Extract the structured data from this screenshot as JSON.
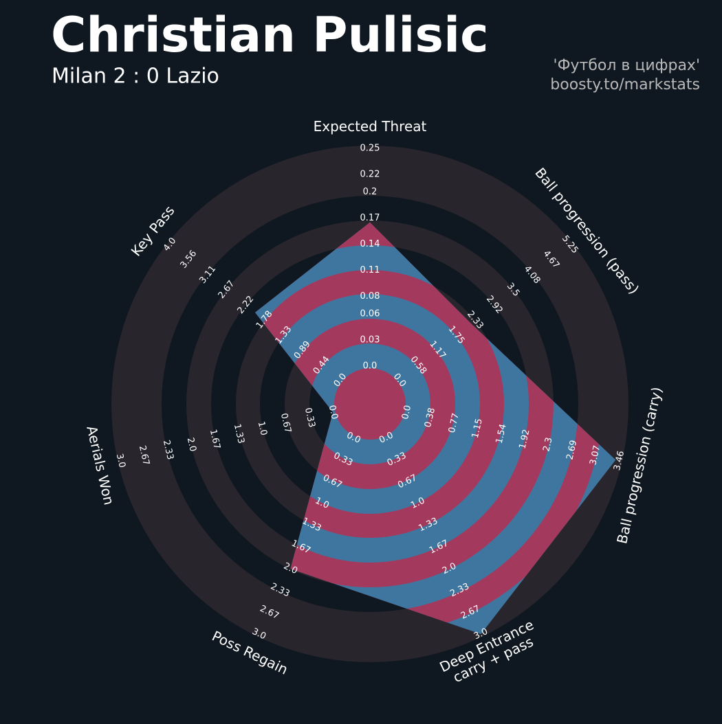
{
  "chart_data": {
    "type": "radar",
    "title": "Christian Pulisic",
    "subtitle": "Milan 2 : 0 Lazio",
    "credits": [
      "'Футбол в цифрах'",
      "boosty.to/markstats"
    ],
    "categories": [
      "Expected Threat",
      "Ball progression (pass)",
      "Ball progression (carry)",
      "Deep Entrance\ncarry + pass",
      "Poss Regain",
      "Aerials Won",
      "Key Pass"
    ],
    "values": [
      0.165,
      2.2,
      3.4,
      3.0,
      2.0,
      0.0,
      2.0
    ],
    "color": "#3f76a0",
    "ring_color": "#a33a5e",
    "background_ring_color": "#28252c",
    "axis_lims": [
      [
        0,
        0.25
      ],
      [
        0,
        5.25
      ],
      [
        0,
        3.46
      ],
      [
        0,
        3
      ],
      [
        0,
        3
      ],
      [
        0,
        3
      ],
      [
        0,
        4
      ]
    ],
    "axis_ticks": [
      [
        {
          "value": 0,
          "label": "0.0"
        },
        0.03,
        0.06,
        0.08,
        0.11,
        0.14,
        0.17,
        0.2,
        0.22,
        0.25
      ],
      [
        {
          "value": 0,
          "label": "0.0"
        },
        0.58,
        1.17,
        1.75,
        2.33,
        2.92,
        3.5,
        4.08,
        4.67,
        5.25
      ],
      [
        {
          "value": 0,
          "label": "0.0"
        },
        0.38,
        0.77,
        1.15,
        1.54,
        1.92,
        2.3,
        2.69,
        3.07,
        3.46
      ],
      [
        {
          "value": 0,
          "label": "0.0"
        },
        0.33,
        0.67,
        {
          "value": 1,
          "label": "1.0"
        },
        1.33,
        1.67,
        {
          "value": 2,
          "label": "2.0"
        },
        2.33,
        2.67,
        {
          "value": 3,
          "label": "3.0"
        }
      ],
      [
        {
          "value": 0,
          "label": "0.0"
        },
        0.33,
        0.67,
        {
          "value": 1,
          "label": "1.0"
        },
        1.33,
        1.67,
        {
          "value": 2,
          "label": "2.0"
        },
        2.33,
        2.67,
        {
          "value": 3,
          "label": "3.0"
        }
      ],
      [
        {
          "value": 0,
          "label": "0.0"
        },
        0.33,
        0.67,
        {
          "value": 1,
          "label": "1.0"
        },
        1.33,
        1.67,
        {
          "value": 2,
          "label": "2.0"
        },
        2.33,
        2.67,
        {
          "value": 3,
          "label": "3.0"
        }
      ],
      [
        {
          "value": 0,
          "label": "0.0"
        },
        0.44,
        0.89,
        1.33,
        1.78,
        2.22,
        2.67,
        3.11,
        3.56,
        {
          "value": 4,
          "label": "4.0"
        }
      ]
    ]
  }
}
